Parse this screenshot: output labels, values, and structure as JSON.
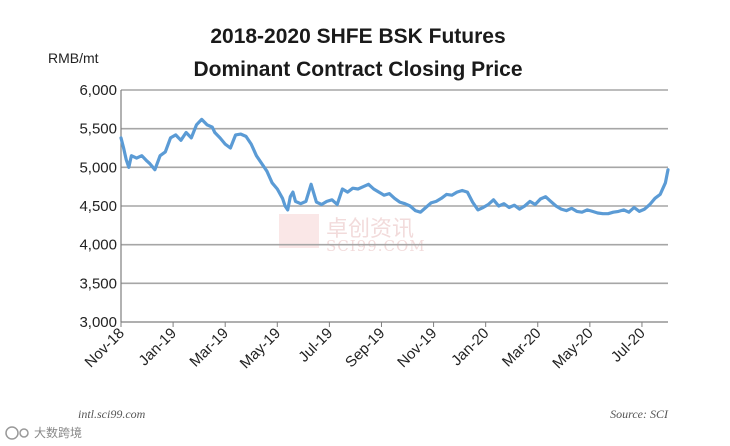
{
  "title_line1": "2018-2020 SHFE BSK Futures",
  "title_line2": "Dominant Contract Closing Price",
  "unit_label": "RMB/mt",
  "footer_left": "intl.sci99.com",
  "footer_right": "Source: SCI",
  "watermark": {
    "cn": "卓创资讯",
    "en": "SCI99.COM"
  },
  "bottom_logo": "大数跨境",
  "colors": {
    "line": "#5b9bd5",
    "grid": "#a6a6a6",
    "axis": "#7f7f7f"
  },
  "chart_data": {
    "type": "line",
    "title": "2018-2020 SHFE BSK Futures Dominant Contract Closing Price",
    "ylabel": "RMB/mt",
    "ylim": [
      3000,
      6000
    ],
    "yticks": [
      "3,000",
      "3,500",
      "4,000",
      "4,500",
      "5,000",
      "5,500",
      "6,000"
    ],
    "xticks": [
      "Nov-18",
      "Jan-19",
      "Mar-19",
      "May-19",
      "Jul-19",
      "Sep-19",
      "Nov-19",
      "Jan-20",
      "Mar-20",
      "May-20",
      "Jul-20"
    ],
    "xlim": [
      0,
      21
    ],
    "grid": true,
    "series": [
      {
        "x": [
          0,
          0.1,
          0.2,
          0.3,
          0.4,
          0.6,
          0.8,
          1.0,
          1.1,
          1.3,
          1.5,
          1.7,
          1.9,
          2.1,
          2.3,
          2.5,
          2.7,
          2.9,
          3.1,
          3.3,
          3.5,
          3.6,
          3.8,
          4.0,
          4.2,
          4.4,
          4.6,
          4.8,
          5.0,
          5.2,
          5.4,
          5.6,
          5.8,
          6.0,
          6.2,
          6.3,
          6.4,
          6.5,
          6.6,
          6.7,
          6.9,
          7.1,
          7.3,
          7.5,
          7.7,
          7.9,
          8.1,
          8.3,
          8.5,
          8.7,
          8.9,
          9.1,
          9.3,
          9.5,
          9.7,
          9.9,
          10.1,
          10.3,
          10.5,
          10.7,
          10.9,
          11.1,
          11.3,
          11.5,
          11.7,
          11.9,
          12.1,
          12.3,
          12.5,
          12.7,
          12.9,
          13.1,
          13.3,
          13.5,
          13.7,
          13.9,
          14.1,
          14.3,
          14.5,
          14.7,
          14.9,
          15.1,
          15.3,
          15.5,
          15.7,
          15.9,
          16.1,
          16.3,
          16.5,
          16.7,
          16.9,
          17.1,
          17.3,
          17.5,
          17.7,
          17.9,
          18.1,
          18.3,
          18.5,
          18.7,
          18.9,
          19.1,
          19.3,
          19.5,
          19.7,
          19.9,
          20.1,
          20.3,
          20.5,
          20.7,
          20.9,
          21.0
        ],
        "y": [
          5380,
          5250,
          5100,
          5000,
          5150,
          5120,
          5150,
          5080,
          5050,
          4970,
          5150,
          5200,
          5380,
          5420,
          5350,
          5450,
          5380,
          5550,
          5620,
          5550,
          5520,
          5450,
          5380,
          5300,
          5250,
          5420,
          5430,
          5400,
          5300,
          5150,
          5050,
          4950,
          4800,
          4720,
          4600,
          4500,
          4450,
          4620,
          4680,
          4560,
          4530,
          4560,
          4780,
          4550,
          4520,
          4560,
          4580,
          4520,
          4720,
          4680,
          4730,
          4720,
          4750,
          4780,
          4720,
          4680,
          4640,
          4660,
          4600,
          4550,
          4530,
          4500,
          4440,
          4420,
          4480,
          4540,
          4560,
          4600,
          4650,
          4640,
          4680,
          4700,
          4680,
          4550,
          4450,
          4480,
          4520,
          4580,
          4500,
          4530,
          4480,
          4510,
          4460,
          4500,
          4560,
          4520,
          4590,
          4620,
          4560,
          4500,
          4460,
          4440,
          4470,
          4430,
          4420,
          4450,
          4430,
          4410,
          4400,
          4400,
          4420,
          4430,
          4450,
          4420,
          4480,
          4430,
          4460,
          4520,
          4600,
          4650,
          4800,
          4970
        ]
      }
    ]
  }
}
